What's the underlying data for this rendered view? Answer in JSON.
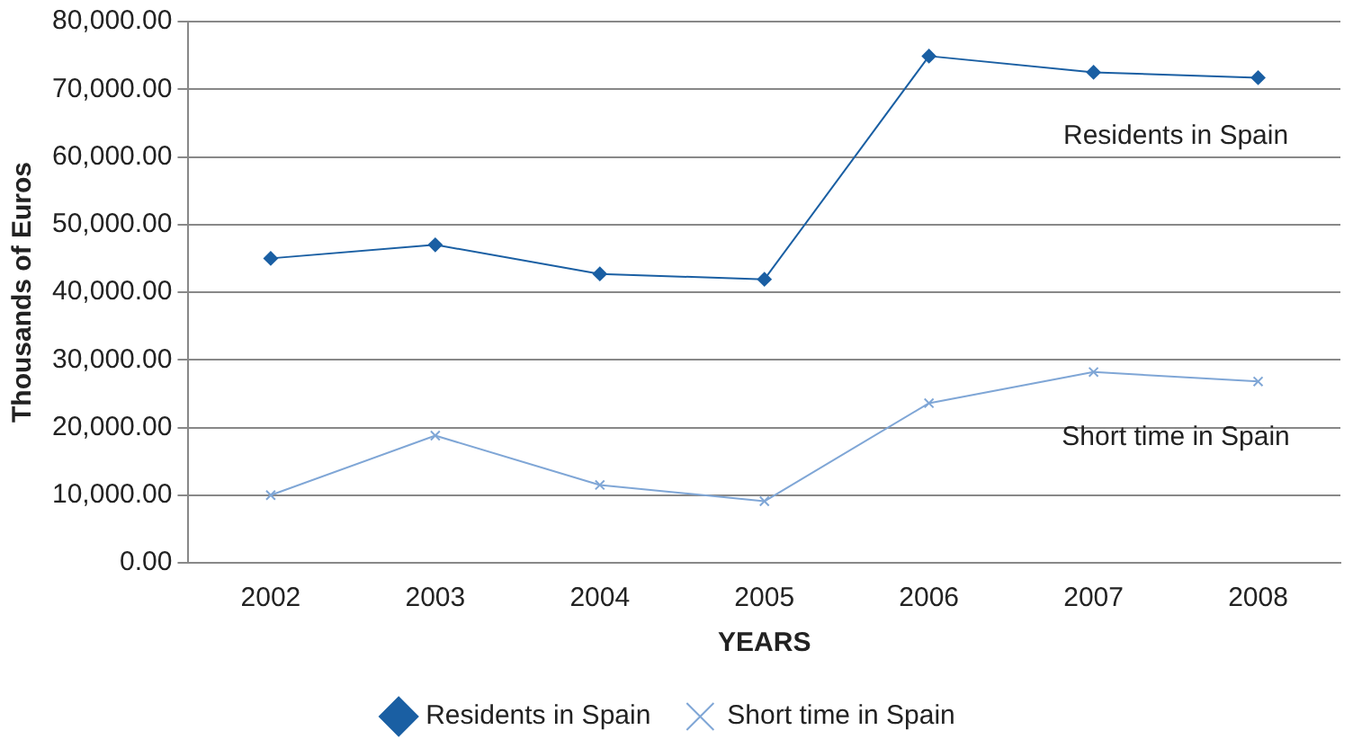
{
  "chart_data": {
    "type": "line",
    "xlabel": "YEARS",
    "ylabel": "Thousands of Euros",
    "categories": [
      "2002",
      "2003",
      "2004",
      "2005",
      "2006",
      "2007",
      "2008"
    ],
    "series": [
      {
        "name": "Residents in Spain",
        "color": "#1a5fa3",
        "marker": "diamond",
        "values": [
          45000,
          47000,
          42700,
          41900,
          74900,
          72500,
          71700
        ]
      },
      {
        "name": "Short time in Spain",
        "color": "#7fa6d6",
        "marker": "cross",
        "values": [
          10000,
          18800,
          11500,
          9100,
          23600,
          28200,
          26800
        ]
      }
    ],
    "ylim": [
      0,
      80000
    ],
    "yticks": [
      {
        "value": 0,
        "label": "0.00"
      },
      {
        "value": 10000,
        "label": "10,000.00"
      },
      {
        "value": 20000,
        "label": "20,000.00"
      },
      {
        "value": 30000,
        "label": "30,000.00"
      },
      {
        "value": 40000,
        "label": "40,000.00"
      },
      {
        "value": 50000,
        "label": "50,000.00"
      },
      {
        "value": 60000,
        "label": "60,000.00"
      },
      {
        "value": 70000,
        "label": "70,000.00"
      },
      {
        "value": 80000,
        "label": "80,000.00"
      }
    ],
    "grid": "y",
    "legend": "bottom",
    "annotations": [
      "Residents in Spain",
      "Short time in Spain"
    ]
  }
}
